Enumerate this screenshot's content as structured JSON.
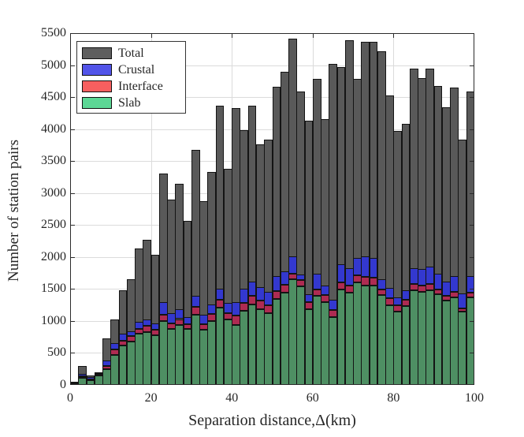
{
  "figure": {
    "background": "#ffffff",
    "ylabel": "Number of station pairs",
    "xlabel": "Separation distance,Δ(km)"
  },
  "colors": {
    "total_bar": "#595959",
    "slab_bar": "#4e8f63",
    "interface_bar": "#ae2b52",
    "crustal_bar": "#3338cf",
    "bar_edge": "#141414",
    "legend_total": "#5e5e5e",
    "legend_crustal": "#5254e9",
    "legend_interface": "#f75f5f",
    "legend_slab": "#5cd795",
    "grid": "#dbdbdb",
    "axis": "#2b2b2b",
    "text": "#262626"
  },
  "legend": {
    "items": [
      {
        "label": "Total",
        "color_key": "legend_total"
      },
      {
        "label": "Crustal",
        "color_key": "legend_crustal"
      },
      {
        "label": "Interface",
        "color_key": "legend_interface"
      },
      {
        "label": "Slab",
        "color_key": "legend_slab"
      }
    ]
  },
  "chart_data": {
    "type": "bar",
    "title": "",
    "xlabel": "Separation distance,Δ(km)",
    "ylabel": "Number of station pairs",
    "xlim": [
      0,
      100
    ],
    "ylim": [
      0,
      5500
    ],
    "x_ticks": [
      0,
      20,
      40,
      60,
      80,
      100
    ],
    "y_ticks": [
      0,
      500,
      1000,
      1500,
      2000,
      2500,
      3000,
      3500,
      4000,
      4500,
      5000,
      5500
    ],
    "grid": "on",
    "legend_position": "top-left-inside",
    "bin_width_km": 2,
    "bin_edges_km": [
      0,
      2,
      4,
      6,
      8,
      10,
      12,
      14,
      16,
      18,
      20,
      22,
      24,
      26,
      28,
      30,
      32,
      34,
      36,
      38,
      40,
      42,
      44,
      46,
      48,
      50,
      52,
      54,
      56,
      58,
      60,
      62,
      64,
      66,
      68,
      70,
      72,
      74,
      76,
      78,
      80,
      82,
      84,
      86,
      88,
      90,
      92,
      94,
      96,
      98,
      100
    ],
    "stacking_note": "Total drawn as full-height bar behind; Slab+Interface+Crustal stacked in front from baseline",
    "series": {
      "total": [
        40,
        290,
        150,
        200,
        730,
        1020,
        1480,
        1650,
        2130,
        2270,
        2040,
        3300,
        2900,
        3150,
        2560,
        3670,
        2870,
        3330,
        4360,
        3380,
        4330,
        3980,
        4360,
        3760,
        3830,
        4660,
        4890,
        5420,
        4590,
        4130,
        4790,
        4150,
        5020,
        4970,
        5390,
        4790,
        5370,
        5360,
        5220,
        4520,
        3970,
        4080,
        4940,
        4800,
        4940,
        4670,
        4340,
        4650,
        3840,
        4590
      ],
      "slab": [
        15,
        110,
        75,
        150,
        250,
        470,
        615,
        680,
        800,
        830,
        780,
        1000,
        870,
        935,
        880,
        1100,
        865,
        1000,
        1210,
        1020,
        940,
        1160,
        1260,
        1190,
        1125,
        1340,
        1440,
        1650,
        1540,
        1190,
        1390,
        1290,
        1060,
        1490,
        1440,
        1605,
        1555,
        1560,
        1400,
        1250,
        1150,
        1230,
        1475,
        1455,
        1480,
        1415,
        1315,
        1370,
        1150,
        1370
      ],
      "interface": [
        5,
        25,
        10,
        10,
        50,
        80,
        75,
        80,
        80,
        90,
        80,
        100,
        90,
        95,
        70,
        120,
        85,
        110,
        120,
        100,
        145,
        120,
        135,
        130,
        125,
        130,
        130,
        90,
        100,
        110,
        100,
        110,
        110,
        110,
        110,
        115,
        135,
        115,
        90,
        105,
        100,
        100,
        105,
        105,
        100,
        80,
        80,
        85,
        45,
        70
      ],
      "crustal": [
        10,
        35,
        35,
        30,
        85,
        100,
        110,
        80,
        105,
        110,
        100,
        200,
        160,
        150,
        115,
        170,
        145,
        150,
        170,
        160,
        210,
        230,
        220,
        210,
        205,
        230,
        210,
        270,
        85,
        120,
        250,
        160,
        160,
        290,
        270,
        270,
        320,
        315,
        160,
        165,
        120,
        145,
        245,
        255,
        275,
        250,
        225,
        250,
        235,
        265
      ]
    }
  }
}
